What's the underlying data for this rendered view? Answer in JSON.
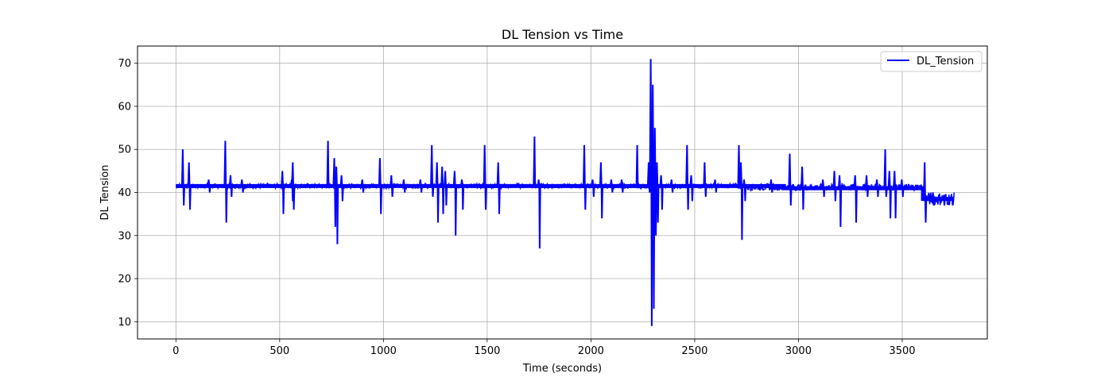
{
  "chart_data": {
    "type": "line",
    "title": "DL Tension vs Time",
    "xlabel": "Time (seconds)",
    "ylabel": "DL Tension",
    "xlim": [
      -185,
      3910
    ],
    "ylim": [
      6,
      74
    ],
    "xticks": [
      0,
      500,
      1000,
      1500,
      2000,
      2500,
      3000,
      3500
    ],
    "yticks": [
      10,
      20,
      30,
      40,
      50,
      60,
      70
    ],
    "grid": true,
    "legend_position": "upper right",
    "series": [
      {
        "name": "DL_Tension",
        "color": "#0000ff",
        "baseline": [
          [
            0,
            41.5
          ],
          [
            2930,
            41.5
          ],
          [
            2930,
            41
          ],
          [
            3600,
            41
          ],
          [
            3600,
            38.5
          ],
          [
            3750,
            38.5
          ]
        ],
        "band": [
          [
            0,
            41,
            42
          ],
          [
            2750,
            40.5,
            42
          ],
          [
            3600,
            37,
            40
          ]
        ],
        "spikes": [
          [
            35,
            50,
            37
          ],
          [
            65,
            47,
            36
          ],
          [
            160,
            43,
            40
          ],
          [
            240,
            52,
            33
          ],
          [
            265,
            44,
            39
          ],
          [
            320,
            43,
            40
          ],
          [
            515,
            45,
            35
          ],
          [
            560,
            43,
            38
          ],
          [
            565,
            47,
            36
          ],
          [
            735,
            52,
            41
          ],
          [
            765,
            48,
            32
          ],
          [
            775,
            46,
            28
          ],
          [
            800,
            44,
            38
          ],
          [
            900,
            43,
            40
          ],
          [
            985,
            48,
            35
          ],
          [
            1040,
            44,
            39
          ],
          [
            1100,
            43,
            40
          ],
          [
            1180,
            43,
            40
          ],
          [
            1235,
            51,
            39
          ],
          [
            1260,
            47,
            33
          ],
          [
            1285,
            46,
            35
          ],
          [
            1300,
            45,
            37
          ],
          [
            1345,
            45,
            30
          ],
          [
            1380,
            43,
            36
          ],
          [
            1490,
            51,
            36
          ],
          [
            1555,
            47,
            35
          ],
          [
            1730,
            53,
            41
          ],
          [
            1750,
            43,
            27
          ],
          [
            1970,
            51,
            36
          ],
          [
            2010,
            43,
            39
          ],
          [
            2050,
            47,
            34
          ],
          [
            2100,
            43,
            40
          ],
          [
            2150,
            43,
            40
          ],
          [
            2225,
            51,
            41
          ],
          [
            2280,
            47,
            40
          ],
          [
            2290,
            71,
            9
          ],
          [
            2300,
            65,
            13
          ],
          [
            2310,
            55,
            30
          ],
          [
            2320,
            47,
            33
          ],
          [
            2340,
            44,
            36
          ],
          [
            2390,
            43,
            40
          ],
          [
            2465,
            51,
            36
          ],
          [
            2485,
            44,
            38
          ],
          [
            2550,
            47,
            39
          ],
          [
            2600,
            43,
            40
          ],
          [
            2715,
            51,
            41
          ],
          [
            2725,
            47,
            29
          ],
          [
            2740,
            43,
            38
          ],
          [
            2870,
            43,
            40
          ],
          [
            2960,
            49,
            37
          ],
          [
            3020,
            46,
            36
          ],
          [
            3120,
            43,
            39
          ],
          [
            3175,
            45,
            38
          ],
          [
            3200,
            44,
            32
          ],
          [
            3275,
            44,
            33
          ],
          [
            3330,
            44,
            39
          ],
          [
            3380,
            43,
            39
          ],
          [
            3420,
            50,
            39
          ],
          [
            3440,
            45,
            34
          ],
          [
            3465,
            45,
            34
          ],
          [
            3500,
            43,
            39
          ],
          [
            3610,
            47,
            33
          ],
          [
            3650,
            40,
            37
          ],
          [
            3700,
            39,
            37
          ],
          [
            3740,
            39,
            37
          ]
        ]
      }
    ]
  }
}
